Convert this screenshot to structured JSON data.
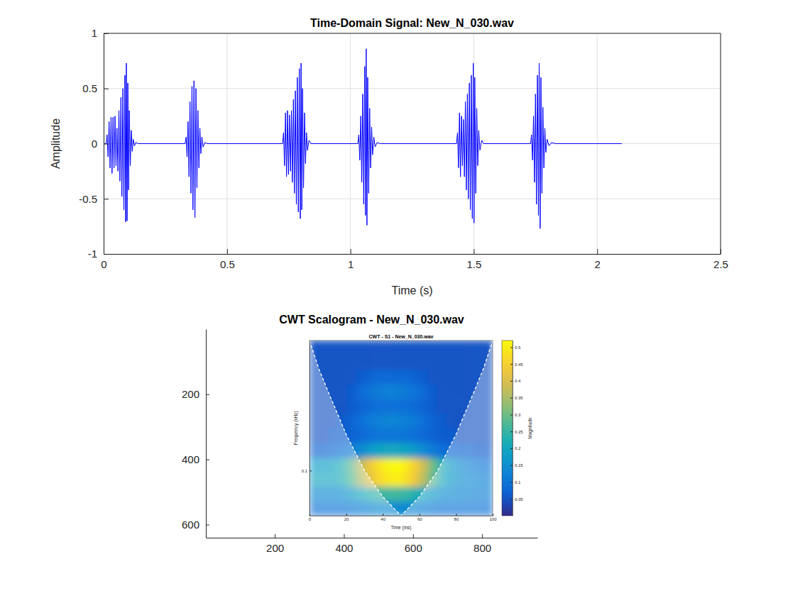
{
  "chart_data": [
    {
      "type": "line",
      "title": "Time-Domain Signal: New_N_030.wav",
      "x_label": "Time (s)",
      "y_label": "Amplitude",
      "x": [
        0,
        0.01,
        0.014,
        0.018,
        0.022,
        0.026,
        0.03,
        0.034,
        0.038,
        0.042,
        0.046,
        0.05,
        0.054,
        0.058,
        0.062,
        0.066,
        0.07,
        0.074,
        0.078,
        0.082,
        0.086,
        0.089,
        0.092,
        0.095,
        0.098,
        0.101,
        0.104,
        0.108,
        0.112,
        0.116,
        0.12,
        0.125,
        0.13,
        0.14,
        0.33,
        0.334,
        0.338,
        0.342,
        0.346,
        0.35,
        0.354,
        0.358,
        0.362,
        0.366,
        0.37,
        0.374,
        0.378,
        0.382,
        0.386,
        0.39,
        0.394,
        0.398,
        0.403,
        0.41,
        0.42,
        0.725,
        0.729,
        0.733,
        0.737,
        0.741,
        0.745,
        0.749,
        0.753,
        0.757,
        0.761,
        0.765,
        0.769,
        0.773,
        0.777,
        0.781,
        0.785,
        0.789,
        0.793,
        0.797,
        0.8,
        0.803,
        0.806,
        0.81,
        0.814,
        0.818,
        0.822,
        0.826,
        0.832,
        0.84,
        1.03,
        1.034,
        1.038,
        1.042,
        1.046,
        1.05,
        1.054,
        1.058,
        1.061,
        1.064,
        1.067,
        1.07,
        1.074,
        1.078,
        1.082,
        1.086,
        1.09,
        1.095,
        1.1,
        1.108,
        1.12,
        1.43,
        1.434,
        1.438,
        1.442,
        1.446,
        1.45,
        1.454,
        1.458,
        1.462,
        1.466,
        1.47,
        1.474,
        1.478,
        1.482,
        1.486,
        1.49,
        1.494,
        1.498,
        1.501,
        1.504,
        1.508,
        1.512,
        1.516,
        1.52,
        1.525,
        1.532,
        1.54,
        1.73,
        1.734,
        1.738,
        1.742,
        1.746,
        1.75,
        1.754,
        1.758,
        1.762,
        1.765,
        1.769,
        1.772,
        1.776,
        1.78,
        1.784,
        1.788,
        1.792,
        1.797,
        1.805,
        1.815,
        1.83,
        2.1
      ],
      "values": [
        0,
        0,
        0.08,
        -0.12,
        0.2,
        -0.22,
        0.24,
        -0.27,
        0.24,
        -0.22,
        0.25,
        -0.2,
        0.14,
        -0.25,
        0.3,
        -0.34,
        0.42,
        -0.48,
        0.5,
        -0.6,
        0.62,
        -0.71,
        0.73,
        -0.7,
        0.55,
        -0.42,
        0.3,
        -0.2,
        0.12,
        -0.07,
        0.04,
        -0.02,
        0.01,
        0,
        0,
        0.06,
        -0.12,
        0.2,
        -0.3,
        0.38,
        -0.45,
        0.52,
        -0.6,
        0.57,
        -0.67,
        0.5,
        -0.4,
        0.3,
        -0.22,
        0.14,
        -0.09,
        0.06,
        -0.03,
        0.01,
        0,
        0,
        0.1,
        -0.2,
        0.28,
        -0.3,
        0.3,
        -0.28,
        0.26,
        -0.25,
        0.3,
        -0.35,
        0.4,
        -0.45,
        0.48,
        -0.55,
        0.6,
        -0.62,
        0.68,
        -0.68,
        0.73,
        -0.6,
        0.5,
        -0.4,
        0.28,
        -0.18,
        0.1,
        -0.06,
        0.03,
        0,
        0,
        0.08,
        -0.15,
        0.25,
        -0.35,
        0.45,
        -0.55,
        0.7,
        -0.65,
        0.86,
        -0.74,
        0.6,
        -0.45,
        0.32,
        -0.22,
        0.15,
        -0.1,
        0.06,
        -0.03,
        0.01,
        0,
        0,
        0.1,
        -0.22,
        0.28,
        -0.3,
        0.25,
        -0.2,
        0.22,
        -0.3,
        0.38,
        -0.42,
        0.45,
        -0.5,
        0.55,
        -0.6,
        0.62,
        -0.68,
        0.73,
        -0.72,
        0.6,
        -0.45,
        0.32,
        -0.2,
        0.12,
        -0.06,
        0.03,
        0,
        0,
        0.08,
        -0.15,
        0.25,
        -0.35,
        0.45,
        -0.55,
        0.62,
        -0.65,
        0.73,
        -0.77,
        0.6,
        -0.45,
        0.33,
        -0.22,
        0.14,
        -0.08,
        0.04,
        -0.02,
        0.01,
        0,
        0
      ],
      "color": "#0000ff",
      "xlim": [
        0,
        2.5
      ],
      "ylim": [
        -1,
        1
      ],
      "xticks": [
        0,
        0.5,
        1,
        1.5,
        2,
        2.5
      ],
      "yticks": [
        -1,
        -0.5,
        0,
        0.5,
        1
      ],
      "grid": true
    },
    {
      "type": "image",
      "title": "CWT Scalogram - New_N_030.wav",
      "xlim": [
        0.5,
        960
      ],
      "ylim": [
        0.5,
        640
      ],
      "xticks": [
        200,
        400,
        600,
        800
      ],
      "yticks": [
        200,
        400,
        600
      ]
    },
    {
      "type": "heatmap",
      "title": "CWT - S1 - New_N_030.wav",
      "x_label": "Time (ms)",
      "y_label": "Frequency (kHz)",
      "log": "y",
      "xlim": [
        0,
        100
      ],
      "ylim": [
        0.045,
        1
      ],
      "xticks": [
        0,
        20,
        40,
        60,
        80,
        100
      ],
      "yticks": [
        0.1
      ],
      "x": [
        2.5,
        7.5,
        12.5,
        17.5,
        22.5,
        27.5,
        32.5,
        37.5,
        42.5,
        47.5,
        52.5,
        57.5,
        62.5,
        67.5,
        72.5,
        77.5,
        82.5,
        87.5,
        92.5,
        97.5
      ],
      "y": [
        0.88,
        0.68,
        0.52,
        0.41,
        0.31,
        0.24,
        0.19,
        0.14,
        0.11,
        0.086,
        0.066,
        0.051
      ],
      "cells": [
        [
          0.05,
          0.05,
          0.05,
          0.05,
          0.05,
          0.05,
          0.05,
          0.05,
          0.05,
          0.05,
          0.05,
          0.05,
          0.05,
          0.05,
          0.05,
          0.05,
          0.05,
          0.05,
          0.05,
          0.05
        ],
        [
          0.05,
          0.05,
          0.05,
          0.05,
          0.05,
          0.05,
          0.05,
          0.05,
          0.05,
          0.05,
          0.05,
          0.05,
          0.05,
          0.05,
          0.05,
          0.05,
          0.05,
          0.05,
          0.05,
          0.05
        ],
        [
          0.05,
          0.05,
          0.05,
          0.05,
          0.05,
          0.06,
          0.07,
          0.08,
          0.08,
          0.08,
          0.08,
          0.07,
          0.06,
          0.05,
          0.05,
          0.05,
          0.05,
          0.05,
          0.05,
          0.05
        ],
        [
          0.05,
          0.05,
          0.05,
          0.05,
          0.06,
          0.08,
          0.1,
          0.11,
          0.12,
          0.12,
          0.11,
          0.1,
          0.08,
          0.06,
          0.05,
          0.05,
          0.05,
          0.05,
          0.05,
          0.05
        ],
        [
          0.05,
          0.05,
          0.05,
          0.05,
          0.06,
          0.07,
          0.08,
          0.09,
          0.09,
          0.09,
          0.09,
          0.08,
          0.07,
          0.06,
          0.05,
          0.05,
          0.05,
          0.05,
          0.05,
          0.05
        ],
        [
          0.05,
          0.05,
          0.05,
          0.06,
          0.07,
          0.09,
          0.11,
          0.12,
          0.13,
          0.13,
          0.12,
          0.11,
          0.09,
          0.07,
          0.06,
          0.05,
          0.05,
          0.05,
          0.05,
          0.05
        ],
        [
          0.05,
          0.05,
          0.06,
          0.06,
          0.07,
          0.08,
          0.09,
          0.1,
          0.1,
          0.1,
          0.1,
          0.09,
          0.08,
          0.07,
          0.06,
          0.06,
          0.05,
          0.05,
          0.05,
          0.05
        ],
        [
          0.07,
          0.07,
          0.08,
          0.09,
          0.11,
          0.14,
          0.17,
          0.19,
          0.2,
          0.2,
          0.19,
          0.17,
          0.14,
          0.11,
          0.09,
          0.08,
          0.07,
          0.07,
          0.06,
          0.06
        ],
        [
          0.18,
          0.18,
          0.19,
          0.22,
          0.28,
          0.36,
          0.43,
          0.48,
          0.51,
          0.52,
          0.5,
          0.45,
          0.38,
          0.3,
          0.22,
          0.17,
          0.14,
          0.12,
          0.11,
          0.1
        ],
        [
          0.2,
          0.2,
          0.2,
          0.22,
          0.27,
          0.34,
          0.41,
          0.46,
          0.49,
          0.5,
          0.48,
          0.43,
          0.36,
          0.28,
          0.21,
          0.17,
          0.15,
          0.14,
          0.13,
          0.12
        ],
        [
          0.14,
          0.14,
          0.14,
          0.15,
          0.17,
          0.2,
          0.23,
          0.25,
          0.26,
          0.26,
          0.25,
          0.23,
          0.2,
          0.17,
          0.15,
          0.14,
          0.13,
          0.13,
          0.12,
          0.12
        ],
        [
          0.1,
          0.1,
          0.1,
          0.1,
          0.11,
          0.12,
          0.13,
          0.14,
          0.14,
          0.14,
          0.14,
          0.13,
          0.12,
          0.11,
          0.1,
          0.1,
          0.1,
          0.1,
          0.1,
          0.1
        ]
      ],
      "colorbar_label": "Magnitude",
      "colorbar_range": [
        0,
        0.52
      ],
      "colorbar_ticks": [
        0.05,
        0.1,
        0.15,
        0.2,
        0.25,
        0.3,
        0.35,
        0.4,
        0.45,
        0.5
      ],
      "series": [
        {
          "type": "line",
          "x": [
            0,
            5,
            10,
            20,
            30,
            40,
            50,
            60,
            70,
            80,
            90,
            95,
            100
          ],
          "values": [
            1,
            0.61,
            0.41,
            0.19,
            0.1,
            0.063,
            0.045,
            0.063,
            0.1,
            0.19,
            0.41,
            0.61,
            1
          ],
          "color": "#ffffff",
          "line_style": "dashed"
        }
      ]
    }
  ]
}
